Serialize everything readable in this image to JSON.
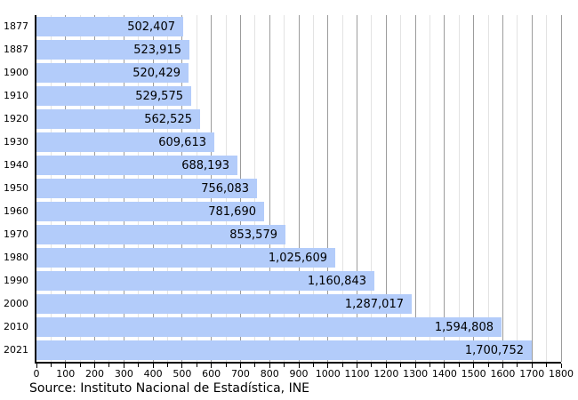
{
  "chart_data": {
    "type": "bar",
    "orientation": "horizontal",
    "title": "",
    "xlabel": "",
    "ylabel": "",
    "categories": [
      "1877",
      "1887",
      "1900",
      "1910",
      "1920",
      "1930",
      "1940",
      "1950",
      "1960",
      "1970",
      "1980",
      "1990",
      "2000",
      "2010",
      "2021"
    ],
    "values": [
      502407,
      523915,
      520429,
      529575,
      562525,
      609613,
      688193,
      756083,
      781690,
      853579,
      1025609,
      1160843,
      1287017,
      1594808,
      1700752
    ],
    "value_labels": [
      "502,407",
      "523,915",
      "520,429",
      "529,575",
      "562,525",
      "609,613",
      "688,193",
      "756,083",
      "781,690",
      "853,579",
      "1,025,609",
      "1,160,843",
      "1,287,017",
      "1,594,808",
      "1,700,752"
    ],
    "x_axis": {
      "min": 0,
      "max": 1800,
      "major_tick_step": 100,
      "minor_tick_step": 50,
      "values_divisor": 1000,
      "tick_labels": [
        "0",
        "100",
        "200",
        "300",
        "400",
        "500",
        "600",
        "700",
        "800",
        "900",
        "1000",
        "1100",
        "1200",
        "1300",
        "1400",
        "1500",
        "1600",
        "1700",
        "1800"
      ]
    },
    "grid": "vertical, major and minor",
    "legend": "none",
    "colors": {
      "bar_fill": "#b3ccfa",
      "grid_major": "#9c9c9c",
      "grid_minor": "#e3e3e3",
      "axis_line": "#000000",
      "text": "#000000",
      "background": "#ffffff"
    }
  },
  "source_note": "Source: Instituto Nacional de Estadística, INE"
}
